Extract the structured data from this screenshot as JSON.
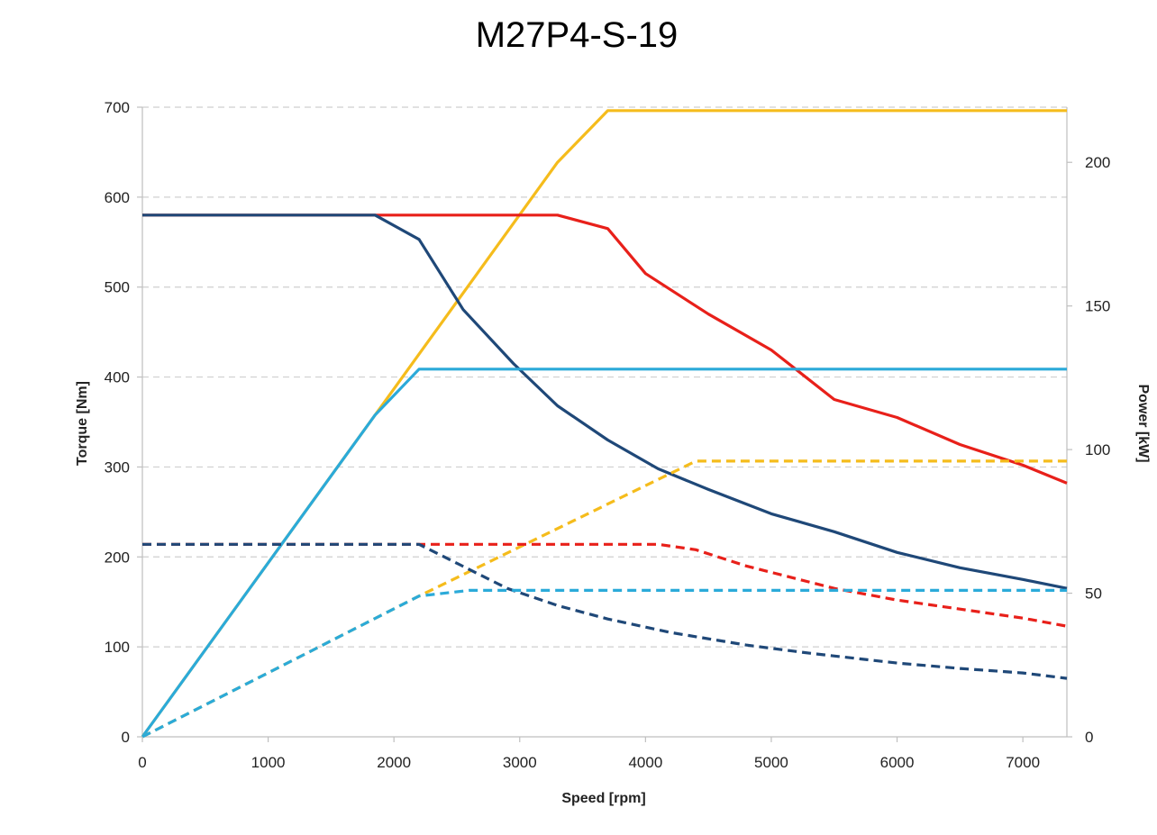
{
  "chart_data": {
    "type": "line",
    "title": "M27P4-S-19",
    "xlabel": "Speed [rpm]",
    "ylabel": "Torque [Nm]",
    "y2label": "Power [kW]",
    "xlim": [
      0,
      7350
    ],
    "ylim": [
      0,
      700
    ],
    "y2lim": [
      0,
      219.2
    ],
    "xticks": [
      0,
      1000,
      2000,
      3000,
      4000,
      5000,
      6000,
      7000
    ],
    "yticks": [
      0,
      100,
      200,
      300,
      400,
      500,
      600,
      700
    ],
    "y2ticks": [
      0,
      50,
      100,
      150,
      200
    ],
    "grid": "horizontal dashed",
    "legend": "none",
    "series": [
      {
        "axis": "power",
        "dash": false,
        "color": "#f5bc1c",
        "x": [
          0,
          1850,
          3300,
          3700,
          7350
        ],
        "y": [
          0,
          112,
          200,
          218,
          218
        ]
      },
      {
        "axis": "torque",
        "dash": false,
        "color": "#e8201a",
        "x": [
          0,
          1850,
          3300,
          3700,
          4000,
          4500,
          5000,
          5500,
          6000,
          6500,
          7000,
          7350
        ],
        "y": [
          580,
          580,
          580,
          565,
          515,
          470,
          430,
          375,
          355,
          325,
          302,
          282
        ]
      },
      {
        "axis": "torque",
        "dash": false,
        "color": "#1f4878",
        "x": [
          0,
          1850,
          2200,
          2550,
          2950,
          3300,
          3700,
          4100,
          4500,
          5000,
          5500,
          6000,
          6500,
          7000,
          7350
        ],
        "y": [
          580,
          580,
          553,
          475,
          415,
          368,
          330,
          298,
          275,
          248,
          228,
          205,
          188,
          175,
          165
        ]
      },
      {
        "axis": "power",
        "dash": false,
        "color": "#2baad9",
        "x": [
          0,
          1850,
          2200,
          7350
        ],
        "y": [
          0,
          112,
          128,
          128
        ]
      },
      {
        "axis": "power",
        "dash": true,
        "color": "#f5bc1c",
        "x": [
          0,
          2200,
          4400,
          7350
        ],
        "y": [
          0,
          49,
          96,
          96
        ]
      },
      {
        "axis": "torque",
        "dash": true,
        "color": "#e8201a",
        "x": [
          0,
          2200,
          3500,
          4100,
          4400,
          4800,
          5500,
          6000,
          6500,
          7000,
          7350
        ],
        "y": [
          214,
          214,
          214,
          214,
          208,
          190,
          165,
          152,
          142,
          132,
          123
        ]
      },
      {
        "axis": "torque",
        "dash": true,
        "color": "#1f4878",
        "x": [
          0,
          2200,
          2900,
          3300,
          3700,
          4200,
          4800,
          5300,
          6000,
          6500,
          7000,
          7350
        ],
        "y": [
          214,
          214,
          165,
          146,
          131,
          116,
          102,
          93,
          82,
          76,
          71,
          65
        ]
      },
      {
        "axis": "power",
        "dash": true,
        "color": "#2baad9",
        "x": [
          0,
          2200,
          2600,
          7350
        ],
        "y": [
          0,
          49,
          51,
          51
        ]
      }
    ]
  }
}
